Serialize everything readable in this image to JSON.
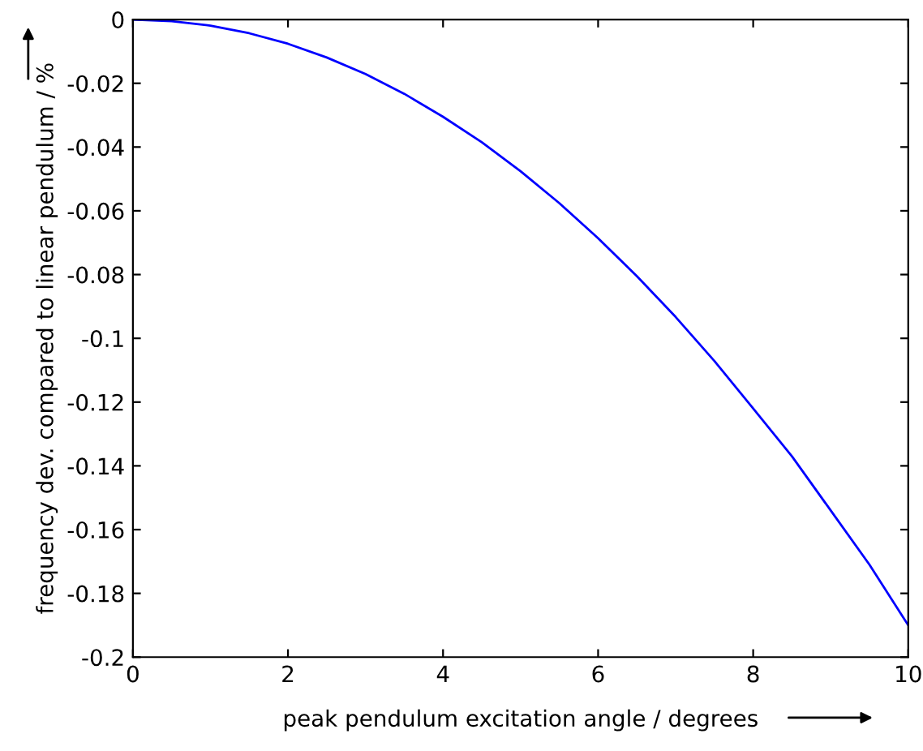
{
  "chart_data": {
    "type": "line",
    "xlabel": "peak pendulum excitation angle / degrees",
    "ylabel": "frequency dev. compared to linear pendulum / %",
    "x": [
      0,
      0.5,
      1,
      1.5,
      2,
      2.5,
      3,
      3.5,
      4,
      4.5,
      5,
      5.5,
      6,
      6.5,
      7,
      7.5,
      8,
      8.5,
      9,
      9.5,
      10
    ],
    "series": [
      {
        "color": "#0000ff",
        "values": [
          0,
          -0.0005,
          -0.0019,
          -0.0043,
          -0.0076,
          -0.0119,
          -0.0171,
          -0.0233,
          -0.0305,
          -0.0385,
          -0.0476,
          -0.0576,
          -0.0686,
          -0.0805,
          -0.0933,
          -0.1071,
          -0.122,
          -0.137,
          -0.154,
          -0.171,
          -0.19
        ]
      }
    ],
    "xlim": [
      0,
      10
    ],
    "ylim": [
      -0.2,
      0
    ],
    "xticks": [
      0,
      2,
      4,
      6,
      8,
      10
    ],
    "yticks": [
      -0.2,
      -0.18,
      -0.16,
      -0.14,
      -0.12,
      -0.1,
      -0.08,
      -0.06,
      -0.04,
      -0.02,
      0
    ],
    "grid": false,
    "legend": false,
    "marker": "none",
    "line_style": "solid"
  }
}
